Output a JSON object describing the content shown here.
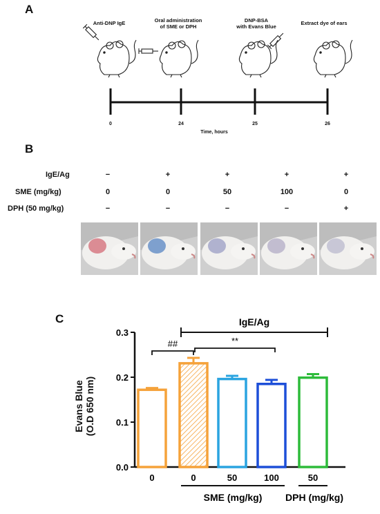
{
  "panels": {
    "a": "A",
    "b": "B",
    "c": "C"
  },
  "timeline": {
    "steps": [
      {
        "label_lines": [
          "Anti-DNP IgE"
        ]
      },
      {
        "label_lines": [
          "Oral administration",
          "of SME or DPH"
        ]
      },
      {
        "label_lines": [
          "DNP-BSA",
          "with Evans Blue"
        ]
      },
      {
        "label_lines": [
          "Extract dye of ears"
        ]
      }
    ],
    "ticks": [
      "0",
      "24",
      "25",
      "26"
    ],
    "axis_label": "Time, hours"
  },
  "table": {
    "rows": [
      {
        "label": "IgE/Ag",
        "values": [
          "−",
          "+",
          "+",
          "+",
          "+"
        ]
      },
      {
        "label": "SME (mg/kg)",
        "values": [
          "0",
          "0",
          "50",
          "100",
          "0"
        ]
      },
      {
        "label": "DPH (50 mg/kg)",
        "values": [
          "−",
          "−",
          "−",
          "−",
          "+"
        ]
      }
    ],
    "photo_tints": [
      "#c93a4a",
      "#1f5fb4",
      "#7a7fb6",
      "#9a93b8",
      "#a6a6c2"
    ]
  },
  "chart_data": {
    "type": "bar",
    "ylabel_lines": [
      "Evans Blue",
      "(O.D 650 nm)"
    ],
    "ylim": [
      0,
      0.3
    ],
    "yticks": [
      "0.0",
      "0.1",
      "0.2",
      "0.3"
    ],
    "categories": [
      "0",
      "0",
      "50",
      "100",
      "50"
    ],
    "values": [
      0.172,
      0.231,
      0.196,
      0.185,
      0.199
    ],
    "errors": [
      0.004,
      0.012,
      0.007,
      0.009,
      0.008
    ],
    "colors": [
      "#f5a23a",
      "#f5a23a",
      "#2aa4e0",
      "#1d4fd8",
      "#2dbb3a"
    ],
    "hatched": [
      false,
      true,
      false,
      false,
      false
    ],
    "group_labels": [
      "SME (mg/kg)",
      "DPH (mg/kg)"
    ],
    "bracket_label": "IgE/Ag",
    "sig_labels": [
      "##",
      "**"
    ]
  }
}
